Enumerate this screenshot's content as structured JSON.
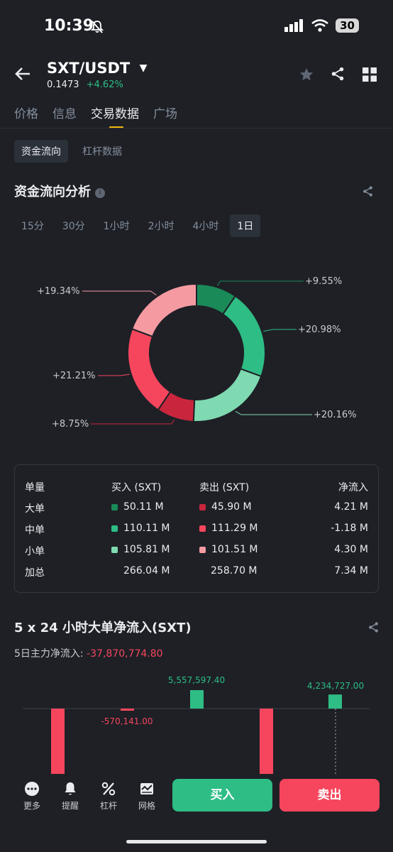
{
  "status": {
    "time": "10:39",
    "battery": "30"
  },
  "header": {
    "pair": "SXT/USDT",
    "price": "0.1473",
    "change": "+4.62%"
  },
  "tabs": [
    "价格",
    "信息",
    "交易数据",
    "广场"
  ],
  "subtabs": [
    "资金流向",
    "杠杆数据"
  ],
  "flow_section": {
    "title": "资金流向分析",
    "periods": [
      "15分",
      "30分",
      "1小时",
      "2小时",
      "4小时",
      "1日"
    ],
    "active_period": "1日"
  },
  "donut": {
    "slices": [
      {
        "label": "+9.55%",
        "value": 9.55,
        "color": "#1a8a58"
      },
      {
        "label": "+20.98%",
        "value": 20.98,
        "color": "#2ebd85"
      },
      {
        "label": "+20.16%",
        "value": 20.16,
        "color": "#7fd9b1"
      },
      {
        "label": "+8.75%",
        "value": 8.75,
        "color": "#c9263d"
      },
      {
        "label": "+21.21%",
        "value": 21.21,
        "color": "#f6465d"
      },
      {
        "label": "+19.34%",
        "value": 19.34,
        "color": "#f69aa2"
      }
    ]
  },
  "table": {
    "headers": [
      "单量",
      "买入 (SXT)",
      "卖出 (SXT)",
      "净流入"
    ],
    "rows": [
      {
        "name": "大单",
        "buy": "50.11 M",
        "sell": "45.90 M",
        "net": "4.21 M",
        "buy_color": "#1a8a58",
        "sell_color": "#c9263d"
      },
      {
        "name": "中单",
        "buy": "110.11 M",
        "sell": "111.29 M",
        "net": "-1.18 M",
        "buy_color": "#2ebd85",
        "sell_color": "#f6465d"
      },
      {
        "name": "小单",
        "buy": "105.81 M",
        "sell": "101.51 M",
        "net": "4.30 M",
        "buy_color": "#7fd9b1",
        "sell_color": "#f69aa2"
      },
      {
        "name": "加总",
        "buy": "266.04 M",
        "sell": "258.70 M",
        "net": "7.34 M"
      }
    ]
  },
  "netflow_section": {
    "title": "5 x 24 小时大单净流入(SXT)",
    "summary_label": "5日主力净流入:",
    "summary_value": "-37,870,774.80",
    "bars": [
      {
        "value": null,
        "label": ""
      },
      {
        "value": -570141.0,
        "label": "-570,141.00"
      },
      {
        "value": 5557597.4,
        "label": "5,557,597.40"
      },
      {
        "value": null,
        "label": ""
      },
      {
        "value": 4234727.0,
        "label": "4,234,727.00"
      }
    ]
  },
  "bottom_bar": {
    "items": [
      "更多",
      "提醒",
      "杠杆",
      "网格"
    ],
    "buy_label": "买入",
    "sell_label": "卖出"
  },
  "colors": {
    "buy": "#2ebd85",
    "sell": "#f6465d",
    "accent": "#f0b90b"
  }
}
